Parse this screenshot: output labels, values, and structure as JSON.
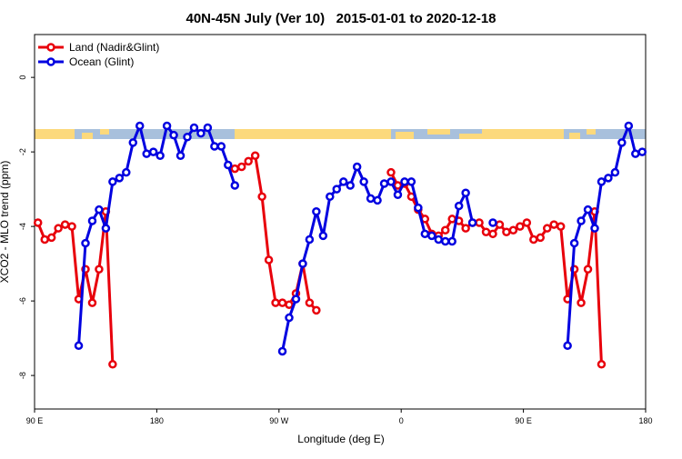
{
  "chart_data": {
    "type": "line",
    "title": "40N-45N July (Ver 10)   2015-01-01 to 2020-12-18",
    "xlabel": "Longitude (deg E)",
    "ylabel": "XCO2 - MLO trend (ppm)",
    "xlim": [
      90,
      540
    ],
    "ylim": [
      -8.9,
      1.15
    ],
    "xticks": [
      {
        "value": 90,
        "label": "90 E"
      },
      {
        "value": 180,
        "label": "180"
      },
      {
        "value": 270,
        "label": "90 W"
      },
      {
        "value": 360,
        "label": "0"
      },
      {
        "value": 450,
        "label": "90 E"
      },
      {
        "value": 540,
        "label": "180"
      }
    ],
    "yticks": [
      0,
      -2,
      -4,
      -6,
      -8
    ],
    "legend": "top-left",
    "x": [
      92.5,
      97.5,
      102.5,
      107.5,
      112.5,
      117.5,
      122.5,
      127.5,
      132.5,
      137.5,
      142.5,
      147.5,
      152.5,
      157.5,
      162.5,
      167.5,
      172.5,
      177.5,
      182.5,
      187.5,
      192.5,
      197.5,
      202.5,
      207.5,
      212.5,
      217.5,
      222.5,
      227.5,
      232.5,
      237.5,
      242.5,
      247.5,
      252.5,
      257.5,
      262.5,
      267.5,
      272.5,
      277.5,
      282.5,
      287.5,
      292.5,
      297.5,
      302.5,
      307.5,
      312.5,
      317.5,
      322.5,
      327.5,
      332.5,
      337.5,
      342.5,
      347.5,
      352.5,
      357.5,
      362.5,
      367.5,
      372.5,
      377.5,
      382.5,
      387.5,
      392.5,
      397.5,
      402.5,
      407.5,
      412.5,
      417.5,
      422.5,
      427.5,
      432.5,
      437.5,
      442.5,
      447.5,
      452.5,
      457.5,
      462.5,
      467.5,
      472.5,
      477.5,
      482.5,
      487.5,
      492.5,
      497.5,
      502.5,
      507.5,
      512.5,
      517.5,
      522.5,
      527.5,
      532.5,
      537.5
    ],
    "series": [
      {
        "name": "Land (Nadir&Glint)",
        "color": "#e8000b",
        "values": [
          -3.9,
          -4.35,
          -4.3,
          -4.05,
          -3.95,
          -4.0,
          -5.95,
          -5.15,
          -6.05,
          -5.15,
          -3.6,
          -7.7,
          null,
          null,
          null,
          null,
          null,
          null,
          null,
          null,
          null,
          null,
          null,
          null,
          null,
          null,
          null,
          null,
          null,
          -2.45,
          -2.4,
          -2.25,
          -2.1,
          -3.2,
          -4.9,
          -6.05,
          -6.05,
          -6.1,
          -5.8,
          -5.0,
          -6.05,
          -6.25,
          null,
          null,
          null,
          null,
          null,
          null,
          null,
          null,
          null,
          null,
          -2.55,
          -2.9,
          -2.85,
          -3.2,
          -3.55,
          -3.8,
          -4.2,
          -4.25,
          -4.1,
          -3.8,
          -3.85,
          -4.05,
          -3.9,
          -3.9,
          -4.15,
          -4.2,
          -3.95,
          -4.15,
          -4.1,
          -4.0,
          -3.9,
          -4.35,
          -4.3,
          -4.05,
          -3.95,
          -4.0,
          -5.95,
          -5.15,
          -6.05,
          -5.15,
          -3.6,
          -7.7,
          null,
          null,
          null,
          null,
          null,
          null
        ]
      },
      {
        "name": "Ocean (Glint)",
        "color": "#0000e0",
        "values": [
          null,
          null,
          null,
          null,
          null,
          null,
          -7.2,
          -4.45,
          -3.85,
          -3.55,
          -4.05,
          -2.8,
          -2.7,
          -2.55,
          -1.75,
          -1.3,
          -2.05,
          -2.0,
          -2.1,
          -1.3,
          -1.55,
          -2.1,
          -1.6,
          -1.35,
          -1.5,
          -1.35,
          -1.85,
          -1.85,
          -2.35,
          -2.9,
          null,
          null,
          null,
          null,
          null,
          null,
          -7.35,
          -6.45,
          -5.95,
          -5.0,
          -4.35,
          -3.6,
          -4.25,
          -3.2,
          -3.0,
          -2.8,
          -2.9,
          -2.4,
          -2.8,
          -3.25,
          -3.3,
          -2.85,
          -2.8,
          -3.15,
          -2.8,
          -2.8,
          -3.5,
          -4.2,
          -4.25,
          -4.35,
          -4.4,
          -4.4,
          -3.45,
          -3.1,
          -3.9,
          null,
          null,
          -3.9,
          null,
          null,
          null,
          null,
          null,
          null,
          null,
          null,
          null,
          null,
          -7.2,
          -4.45,
          -3.85,
          -3.55,
          -4.05,
          -2.8,
          -2.7,
          -2.55,
          -1.75,
          -1.3,
          -2.05,
          -2.0
        ]
      }
    ]
  }
}
